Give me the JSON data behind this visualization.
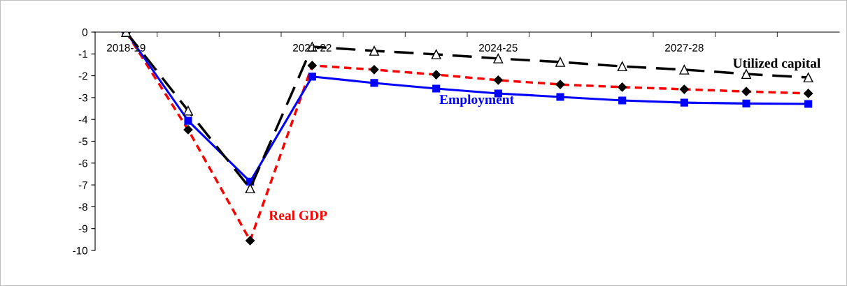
{
  "chart_data": {
    "type": "line",
    "categories": [
      "2018-19",
      null,
      null,
      "2021-22",
      null,
      null,
      "2024-25",
      null,
      null,
      "2027-28",
      null,
      null
    ],
    "ylim": [
      -10,
      0
    ],
    "yticks": [
      0,
      -1,
      -2,
      -3,
      -4,
      -5,
      -6,
      -7,
      -8,
      -9,
      -10
    ],
    "grid": false,
    "legend": false,
    "series": [
      {
        "name": "Real GDP",
        "color": "#ff0000",
        "line_style": "dashed",
        "marker": "diamond",
        "values": [
          0,
          -4.47,
          -9.55,
          -1.53,
          -1.72,
          -1.95,
          -2.2,
          -2.4,
          -2.52,
          -2.62,
          -2.72,
          -2.81
        ]
      },
      {
        "name": "Employment",
        "color": "#0000ff",
        "line_style": "solid",
        "marker": "square",
        "values": [
          0,
          -4.06,
          -6.85,
          -2.04,
          -2.33,
          -2.59,
          -2.81,
          -2.97,
          -3.13,
          -3.23,
          -3.27,
          -3.29
        ]
      },
      {
        "name": "Utilized capital",
        "color": "#000000",
        "line_style": "dashed",
        "marker": "triangle",
        "values": [
          0,
          -3.6,
          -7.16,
          -0.67,
          -0.86,
          -1.02,
          -1.21,
          -1.37,
          -1.57,
          -1.72,
          -1.92,
          -2.08
        ]
      }
    ]
  }
}
